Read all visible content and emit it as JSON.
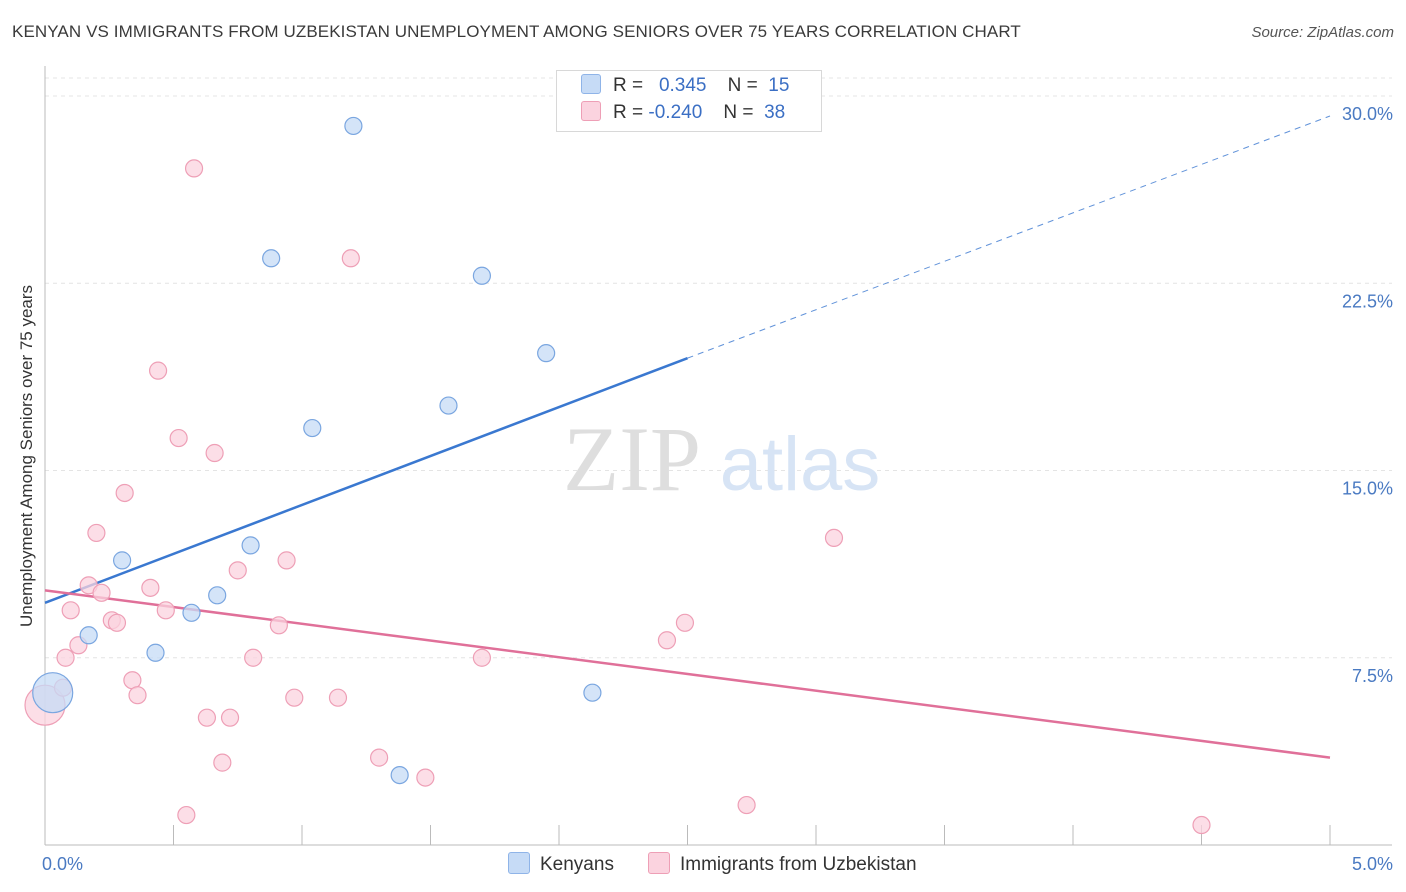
{
  "title": "KENYAN VS IMMIGRANTS FROM UZBEKISTAN UNEMPLOYMENT AMONG SENIORS OVER 75 YEARS CORRELATION CHART",
  "source": "Source: ZipAtlas.com",
  "watermark": {
    "zip": "ZIP",
    "atlas": "atlas"
  },
  "legend": {
    "r_label": "R =",
    "n_label": "N =",
    "rows": [
      {
        "r": "0.345",
        "n": "15",
        "color": "#b9d3f5",
        "border": "#8fb4e8"
      },
      {
        "r": "-0.240",
        "n": "38",
        "color": "#f9c6d4",
        "border": "#f0a5bb"
      }
    ]
  },
  "colors": {
    "kenyan_fill": "#c6dbf6",
    "kenyan_stroke": "#7aa6e0",
    "kenyan_line": "#3a78d0",
    "uzbek_fill": "#fbd3df",
    "uzbek_stroke": "#ee9fb6",
    "uzbek_line": "#e07099",
    "grid": "#e4e4e4"
  },
  "chart_data": {
    "type": "scatter",
    "ylabel": "Unemployment Among Seniors over 75 years",
    "xlim": [
      0,
      5
    ],
    "ylim": [
      0,
      30
    ],
    "x_tick_labels": [
      {
        "v": 0,
        "label": "0.0%"
      },
      {
        "v": 5,
        "label": "5.0%"
      }
    ],
    "y_ticks": [
      {
        "v": 7.5,
        "label": "7.5%"
      },
      {
        "v": 15,
        "label": "15.0%"
      },
      {
        "v": 22.5,
        "label": "22.5%"
      },
      {
        "v": 30,
        "label": "30.0%"
      }
    ],
    "grid": true,
    "series": [
      {
        "name": "Kenyans",
        "points": [
          {
            "x": 0.03,
            "y": 6.1,
            "size": "large"
          },
          {
            "x": 0.17,
            "y": 8.4
          },
          {
            "x": 0.3,
            "y": 11.4
          },
          {
            "x": 0.43,
            "y": 7.7
          },
          {
            "x": 0.57,
            "y": 9.3
          },
          {
            "x": 0.67,
            "y": 10.0
          },
          {
            "x": 0.8,
            "y": 12.0
          },
          {
            "x": 0.88,
            "y": 23.5
          },
          {
            "x": 1.04,
            "y": 16.7
          },
          {
            "x": 1.2,
            "y": 28.8
          },
          {
            "x": 1.38,
            "y": 2.8
          },
          {
            "x": 1.57,
            "y": 17.6
          },
          {
            "x": 1.7,
            "y": 22.8
          },
          {
            "x": 1.95,
            "y": 19.7
          },
          {
            "x": 2.13,
            "y": 6.1
          }
        ],
        "trend": {
          "x0": 0,
          "y0": 9.7,
          "x1": 2.5,
          "y1": 19.5,
          "dashed_to_x": 5.0,
          "dashed_to_y": 29.2
        }
      },
      {
        "name": "Immigrants from Uzbekistan",
        "points": [
          {
            "x": 0.0,
            "y": 5.6,
            "size": "large"
          },
          {
            "x": 0.07,
            "y": 6.3
          },
          {
            "x": 0.08,
            "y": 7.5
          },
          {
            "x": 0.1,
            "y": 9.4
          },
          {
            "x": 0.13,
            "y": 8.0
          },
          {
            "x": 0.17,
            "y": 10.4
          },
          {
            "x": 0.2,
            "y": 12.5
          },
          {
            "x": 0.22,
            "y": 10.1
          },
          {
            "x": 0.26,
            "y": 9.0
          },
          {
            "x": 0.28,
            "y": 8.9
          },
          {
            "x": 0.31,
            "y": 14.1
          },
          {
            "x": 0.34,
            "y": 6.6
          },
          {
            "x": 0.36,
            "y": 6.0
          },
          {
            "x": 0.41,
            "y": 10.3
          },
          {
            "x": 0.44,
            "y": 19.0
          },
          {
            "x": 0.47,
            "y": 9.4
          },
          {
            "x": 0.52,
            "y": 16.3
          },
          {
            "x": 0.55,
            "y": 1.2
          },
          {
            "x": 0.58,
            "y": 27.1
          },
          {
            "x": 0.63,
            "y": 5.1
          },
          {
            "x": 0.66,
            "y": 15.7
          },
          {
            "x": 0.69,
            "y": 3.3
          },
          {
            "x": 0.72,
            "y": 5.1
          },
          {
            "x": 0.75,
            "y": 11.0
          },
          {
            "x": 0.81,
            "y": 7.5
          },
          {
            "x": 0.91,
            "y": 8.8
          },
          {
            "x": 0.94,
            "y": 11.4
          },
          {
            "x": 0.97,
            "y": 5.9
          },
          {
            "x": 1.14,
            "y": 5.9
          },
          {
            "x": 1.19,
            "y": 23.5
          },
          {
            "x": 1.3,
            "y": 3.5
          },
          {
            "x": 1.48,
            "y": 2.7
          },
          {
            "x": 1.7,
            "y": 7.5
          },
          {
            "x": 2.42,
            "y": 8.2
          },
          {
            "x": 2.49,
            "y": 8.9
          },
          {
            "x": 2.73,
            "y": 1.6
          },
          {
            "x": 3.07,
            "y": 12.3
          },
          {
            "x": 4.5,
            "y": 0.8
          }
        ],
        "trend": {
          "x0": 0,
          "y0": 10.2,
          "x1": 5.0,
          "y1": 3.5
        }
      }
    ]
  }
}
